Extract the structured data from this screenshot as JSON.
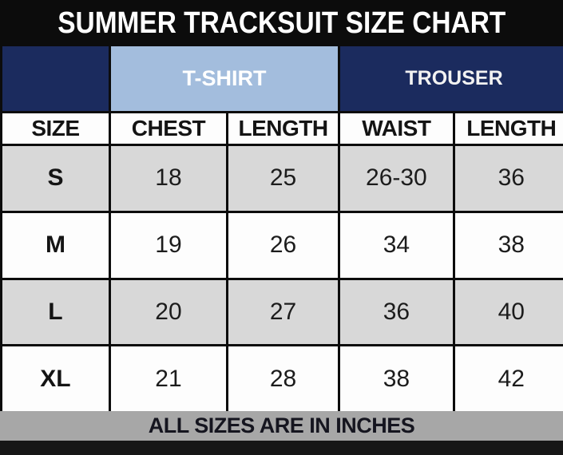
{
  "chart_data": {
    "type": "table",
    "title": "SUMMER TRACKSUIT SIZE CHART",
    "column_groups": [
      {
        "label": "T-SHIRT",
        "columns": [
          "CHEST",
          "LENGTH"
        ]
      },
      {
        "label": "TROUSER",
        "columns": [
          "WAIST",
          "LENGTH"
        ]
      }
    ],
    "columns": [
      "SIZE",
      "CHEST",
      "LENGTH",
      "WAIST",
      "LENGTH"
    ],
    "rows": [
      [
        "S",
        "18",
        "25",
        "26-30",
        "36"
      ],
      [
        "M",
        "19",
        "26",
        "34",
        "38"
      ],
      [
        "L",
        "20",
        "27",
        "36",
        "40"
      ],
      [
        "XL",
        "21",
        "28",
        "38",
        "42"
      ]
    ],
    "footnote": "ALL SIZES ARE IN INCHES",
    "units": "inches"
  },
  "colors": {
    "background_black": "#0c0c0c",
    "navy": "#1b2b5e",
    "light_blue": "#a3bddd",
    "row_gray": "#d8d8d8",
    "row_white": "#fdfdfd",
    "footer_gray": "#a7a7a7",
    "title_text": "#ffffff",
    "body_text": "#1c1c1c"
  }
}
